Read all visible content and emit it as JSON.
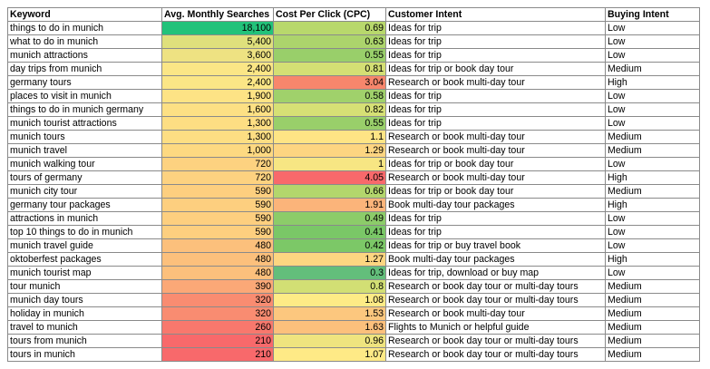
{
  "headers": [
    "Keyword",
    "Avg. Monthly Searches",
    "Cost Per Click (CPC)",
    "Customer Intent",
    "Buying Intent"
  ],
  "rows": [
    {
      "keyword": "things to do in munich",
      "searches": "18,100",
      "cpc": "0.69",
      "intent": "Ideas for trip",
      "buying": "Low",
      "s_color": "#22c27a",
      "c_color": "#b8d86c"
    },
    {
      "keyword": "what to do in munich",
      "searches": "5,400",
      "cpc": "0.63",
      "intent": "Ideas for trip",
      "buying": "Low",
      "s_color": "#dfe07c",
      "c_color": "#acd46c"
    },
    {
      "keyword": "munich attractions",
      "searches": "3,600",
      "cpc": "0.55",
      "intent": "Ideas for trip",
      "buying": "Low",
      "s_color": "#eee282",
      "c_color": "#99cf6a"
    },
    {
      "keyword": "day trips from munich",
      "searches": "2,400",
      "cpc": "0.81",
      "intent": "Ideas for trip or book day tour",
      "buying": "Medium",
      "s_color": "#fbe686",
      "c_color": "#d4df74"
    },
    {
      "keyword": "germany tours",
      "searches": "2,400",
      "cpc": "3.04",
      "intent": "Research or book multi-day tour",
      "buying": "High",
      "s_color": "#fbe686",
      "c_color": "#f7866c"
    },
    {
      "keyword": "places to visit in munich",
      "searches": "1,900",
      "cpc": "0.58",
      "intent": "Ideas for trip",
      "buying": "Low",
      "s_color": "#fde385",
      "c_color": "#a0d16b"
    },
    {
      "keyword": "things to do in munich germany",
      "searches": "1,600",
      "cpc": "0.82",
      "intent": "Ideas for trip",
      "buying": "Low",
      "s_color": "#fde084",
      "c_color": "#d6e075"
    },
    {
      "keyword": "munich tourist attractions",
      "searches": "1,300",
      "cpc": "0.55",
      "intent": "Ideas for trip",
      "buying": "Low",
      "s_color": "#fdde83",
      "c_color": "#99cf6a"
    },
    {
      "keyword": "munich tours",
      "searches": "1,300",
      "cpc": "1.1",
      "intent": "Research or book multi-day tour",
      "buying": "Medium",
      "s_color": "#fdde83",
      "c_color": "#fee485"
    },
    {
      "keyword": "munich travel",
      "searches": "1,000",
      "cpc": "1.29",
      "intent": "Research or book multi-day tour",
      "buying": "Medium",
      "s_color": "#fdd981",
      "c_color": "#fdd581"
    },
    {
      "keyword": "munich walking tour",
      "searches": "720",
      "cpc": "1",
      "intent": "Ideas for trip or book day tour",
      "buying": "Low",
      "s_color": "#fdd280",
      "c_color": "#f7e683"
    },
    {
      "keyword": "tours of germany",
      "searches": "720",
      "cpc": "4.05",
      "intent": "Research or book multi-day tour",
      "buying": "High",
      "s_color": "#fdd280",
      "c_color": "#f8696b"
    },
    {
      "keyword": "munich city tour",
      "searches": "590",
      "cpc": "0.66",
      "intent": "Ideas for trip or book day tour",
      "buying": "Medium",
      "s_color": "#fdcf7f",
      "c_color": "#b3d66c"
    },
    {
      "keyword": "germany tour packages",
      "searches": "590",
      "cpc": "1.91",
      "intent": "Book multi-day tour packages",
      "buying": "High",
      "s_color": "#fdcf7f",
      "c_color": "#fbb47a"
    },
    {
      "keyword": "attractions in munich",
      "searches": "590",
      "cpc": "0.49",
      "intent": "Ideas for trip",
      "buying": "Low",
      "s_color": "#fdcf7f",
      "c_color": "#8ccc69"
    },
    {
      "keyword": "top 10 things to do in munich",
      "searches": "590",
      "cpc": "0.41",
      "intent": "Ideas for trip",
      "buying": "Low",
      "s_color": "#fdcf7f",
      "c_color": "#7ac767"
    },
    {
      "keyword": "munich travel guide",
      "searches": "480",
      "cpc": "0.42",
      "intent": "Ideas for trip or buy travel book",
      "buying": "Low",
      "s_color": "#fcc07c",
      "c_color": "#7cc867"
    },
    {
      "keyword": "oktoberfest packages",
      "searches": "480",
      "cpc": "1.27",
      "intent": "Book multi-day tour packages",
      "buying": "High",
      "s_color": "#fcc07c",
      "c_color": "#fdd681"
    },
    {
      "keyword": "munich tourist map",
      "searches": "480",
      "cpc": "0.3",
      "intent": "Ideas for trip, download or buy map",
      "buying": "Low",
      "s_color": "#fcc07c",
      "c_color": "#63be7b"
    },
    {
      "keyword": "tour munich",
      "searches": "390",
      "cpc": "0.8",
      "intent": "Research or book day tour or multi-day tours",
      "buying": "Medium",
      "s_color": "#fba877",
      "c_color": "#d2df74"
    },
    {
      "keyword": "munich day tours",
      "searches": "320",
      "cpc": "1.08",
      "intent": "Research or book day tour or multi-day tours",
      "buying": "Medium",
      "s_color": "#f98c71",
      "c_color": "#feeb86"
    },
    {
      "keyword": "holiday in munich",
      "searches": "320",
      "cpc": "1.53",
      "intent": "Research or book multi-day tour",
      "buying": "Medium",
      "s_color": "#f98c71",
      "c_color": "#fcc77e"
    },
    {
      "keyword": "travel to munich",
      "searches": "260",
      "cpc": "1.63",
      "intent": "Flights to Munich or helpful guide",
      "buying": "Medium",
      "s_color": "#f8786d",
      "c_color": "#fcc07c"
    },
    {
      "keyword": "tours from munich",
      "searches": "210",
      "cpc": "0.96",
      "intent": "Research or book day tour or multi-day tours",
      "buying": "Medium",
      "s_color": "#f8696b",
      "c_color": "#efe47f"
    },
    {
      "keyword": "tours in munich",
      "searches": "210",
      "cpc": "1.07",
      "intent": "Research or book day tour or multi-day tours",
      "buying": "Medium",
      "s_color": "#f8696b",
      "c_color": "#feea86"
    }
  ]
}
